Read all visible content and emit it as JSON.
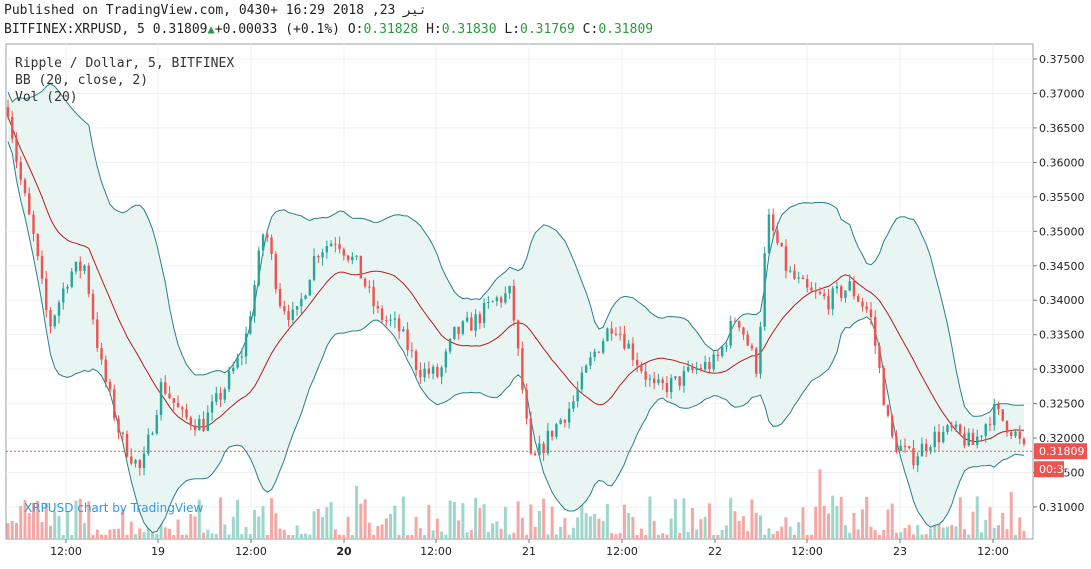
{
  "header": {
    "published": "Published on TradingView.com, تیر 23, 2018 16:29 +0430",
    "symbol": "BITFINEX:XRPUSD, 5",
    "last": "0.31809",
    "change": "+0.00033 (+0.1%)",
    "o_label": "O:",
    "o_value": "0.31828",
    "h_label": "H:",
    "h_value": "0.31830",
    "l_label": "L:",
    "l_value": "0.31769",
    "c_label": "C:",
    "c_value": "0.31809"
  },
  "legend": {
    "title": "Ripple / Dollar, 5, BITFINEX",
    "bb": "BB (20, close, 2)",
    "vol": "Vol (20)"
  },
  "watermark": "XRPUSD chart by TradingView",
  "price_label": "0.31809",
  "countdown_label": "00:37",
  "colors": {
    "up": "#26a69a",
    "down": "#ef5350",
    "band": "#2a7f87",
    "band_fill": "#e8f5f3",
    "basis": "#b71c1c",
    "price_line": "#ef5350",
    "price_tag": "#ef5350",
    "vol_up": "#9ed6cc",
    "vol_down": "#f4a8a6",
    "watermark": "#2f9ae3"
  },
  "chart_data": {
    "type": "candlestick",
    "title": "Ripple / Dollar, 5, BITFINEX",
    "y_ticks": [
      "0.37500",
      "0.37000",
      "0.36500",
      "0.36000",
      "0.35500",
      "0.35000",
      "0.34500",
      "0.34000",
      "0.33500",
      "0.33000",
      "0.32500",
      "0.32000",
      "0.31500",
      "0.31000"
    ],
    "ylim": [
      0.306,
      0.376
    ],
    "x_ticks": [
      "12:00",
      "19",
      "12:00",
      "20",
      "12:00",
      "21",
      "12:00",
      "22",
      "12:00",
      "23",
      "12:00"
    ],
    "x_tick_bold": [
      false,
      false,
      false,
      true,
      false,
      false,
      false,
      false,
      false,
      false,
      false
    ],
    "key_points": [
      {
        "t": 0,
        "p": 0.368
      },
      {
        "t": 0.02,
        "p": 0.359
      },
      {
        "t": 0.05,
        "p": 0.349
      },
      {
        "t": 0.08,
        "p": 0.336
      },
      {
        "t": 0.12,
        "p": 0.344
      },
      {
        "t": 0.15,
        "p": 0.345
      },
      {
        "t": 0.18,
        "p": 0.331
      },
      {
        "t": 0.22,
        "p": 0.32
      },
      {
        "t": 0.26,
        "p": 0.315
      },
      {
        "t": 0.3,
        "p": 0.328
      },
      {
        "t": 0.34,
        "p": 0.323
      },
      {
        "t": 0.38,
        "p": 0.322
      },
      {
        "t": 0.42,
        "p": 0.327
      },
      {
        "t": 0.46,
        "p": 0.333
      },
      {
        "t": 0.5,
        "p": 0.351
      },
      {
        "t": 0.53,
        "p": 0.34
      },
      {
        "t": 0.56,
        "p": 0.337
      },
      {
        "t": 0.6,
        "p": 0.347
      },
      {
        "t": 0.64,
        "p": 0.349
      },
      {
        "t": 0.68,
        "p": 0.345
      },
      {
        "t": 0.72,
        "p": 0.338
      },
      {
        "t": 0.76,
        "p": 0.336
      },
      {
        "t": 0.8,
        "p": 0.33
      },
      {
        "t": 0.84,
        "p": 0.329
      },
      {
        "t": 0.87,
        "p": 0.335
      },
      {
        "t": 0.91,
        "p": 0.337
      },
      {
        "t": 0.95,
        "p": 0.34
      },
      {
        "t": 0.98,
        "p": 0.341
      },
      {
        "t": 1.02,
        "p": 0.316
      },
      {
        "t": 1.06,
        "p": 0.321
      },
      {
        "t": 1.1,
        "p": 0.325
      },
      {
        "t": 1.14,
        "p": 0.332
      },
      {
        "t": 1.18,
        "p": 0.337
      },
      {
        "t": 1.22,
        "p": 0.332
      },
      {
        "t": 1.26,
        "p": 0.327
      },
      {
        "t": 1.3,
        "p": 0.328
      },
      {
        "t": 1.34,
        "p": 0.33
      },
      {
        "t": 1.38,
        "p": 0.331
      },
      {
        "t": 1.42,
        "p": 0.338
      },
      {
        "t": 1.46,
        "p": 0.33
      },
      {
        "t": 1.48,
        "p": 0.352
      },
      {
        "t": 1.52,
        "p": 0.344
      },
      {
        "t": 1.56,
        "p": 0.341
      },
      {
        "t": 1.6,
        "p": 0.34
      },
      {
        "t": 1.64,
        "p": 0.342
      },
      {
        "t": 1.68,
        "p": 0.338
      },
      {
        "t": 1.72,
        "p": 0.32
      },
      {
        "t": 1.76,
        "p": 0.317
      },
      {
        "t": 1.8,
        "p": 0.32
      },
      {
        "t": 1.84,
        "p": 0.321
      },
      {
        "t": 1.88,
        "p": 0.319
      },
      {
        "t": 1.92,
        "p": 0.324
      },
      {
        "t": 1.96,
        "p": 0.321
      },
      {
        "t": 1.98,
        "p": 0.3181
      }
    ]
  }
}
